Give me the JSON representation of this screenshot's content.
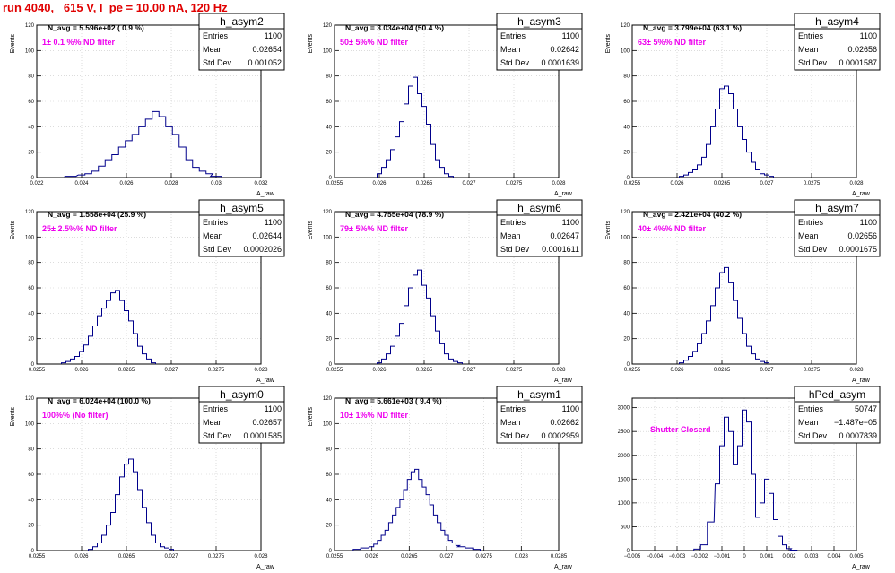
{
  "title": "run 4040,   615 V, I_pe = 10.00 nA, 120 Hz",
  "colors": {
    "title": "#e00000",
    "annotation": "#ee00ee",
    "histogram": "#00008b",
    "grid": "#c8c8c8"
  },
  "stat_labels": {
    "entries": "Entries",
    "mean": "Mean",
    "std": "Std Dev"
  },
  "chart_data": [
    {
      "type": "histogram",
      "name": "h_asym2",
      "n_avg": "N_avg = 5.596e+02 ( 0.9 %)",
      "note": "1± 0.1 %% ND filter",
      "stats": {
        "entries": "1100",
        "mean": "0.02654",
        "std": "0.001052"
      },
      "xlabel": "A_raw",
      "ylabel": "Events",
      "xlim": [
        0.022,
        0.032
      ],
      "ylim": [
        0,
        120
      ],
      "xticks": [
        "0.022",
        "0.024",
        "0.026",
        "0.028",
        "0.03",
        "0.032"
      ],
      "yticks": [
        "0",
        "20",
        "40",
        "60",
        "80",
        "100",
        "120"
      ],
      "x": [
        0.0235,
        0.024,
        0.0243,
        0.0246,
        0.0249,
        0.0252,
        0.0255,
        0.0258,
        0.0261,
        0.0264,
        0.0267,
        0.027,
        0.0273,
        0.0276,
        0.0279,
        0.0282,
        0.0285,
        0.0288,
        0.0291,
        0.0294,
        0.0297,
        0.03
      ],
      "values": [
        1,
        2,
        3,
        5,
        9,
        14,
        18,
        24,
        29,
        34,
        40,
        46,
        52,
        48,
        40,
        34,
        24,
        14,
        8,
        5,
        3,
        1
      ]
    },
    {
      "type": "histogram",
      "name": "h_asym3",
      "n_avg": "N_avg = 3.034e+04 (50.4 %)",
      "note": "50± 5%% ND filter",
      "stats": {
        "entries": "1100",
        "mean": "0.02642",
        "std": "0.0001639"
      },
      "xlabel": "A_raw",
      "ylabel": "Events",
      "xlim": [
        0.0255,
        0.028
      ],
      "ylim": [
        0,
        120
      ],
      "xticks": [
        "0.0255",
        "0.026",
        "0.0265",
        "0.027",
        "0.0275",
        "0.028"
      ],
      "yticks": [
        "0",
        "20",
        "40",
        "60",
        "80",
        "100",
        "120"
      ],
      "x": [
        0.026,
        0.02605,
        0.0261,
        0.02615,
        0.0262,
        0.02625,
        0.0263,
        0.02635,
        0.0264,
        0.02645,
        0.0265,
        0.02655,
        0.0266,
        0.02665,
        0.0267,
        0.02675,
        0.0268
      ],
      "values": [
        3,
        8,
        14,
        22,
        32,
        44,
        58,
        72,
        79,
        66,
        56,
        42,
        26,
        14,
        8,
        3,
        1
      ]
    },
    {
      "type": "histogram",
      "name": "h_asym4",
      "n_avg": "N_avg = 3.799e+04 (63.1 %)",
      "note": "63± 5%% ND filter",
      "stats": {
        "entries": "1100",
        "mean": "0.02656",
        "std": "0.0001587"
      },
      "xlabel": "A_raw",
      "ylabel": "Events",
      "xlim": [
        0.0255,
        0.028
      ],
      "ylim": [
        0,
        120
      ],
      "xticks": [
        "0.0255",
        "0.026",
        "0.0265",
        "0.027",
        "0.0275",
        "0.028"
      ],
      "yticks": [
        "0",
        "20",
        "40",
        "60",
        "80",
        "100",
        "120"
      ],
      "x": [
        0.02605,
        0.0261,
        0.02615,
        0.0262,
        0.02625,
        0.0263,
        0.02635,
        0.0264,
        0.02645,
        0.0265,
        0.02655,
        0.0266,
        0.02665,
        0.0267,
        0.02675,
        0.0268,
        0.02685,
        0.0269,
        0.02695,
        0.027,
        0.02705
      ],
      "values": [
        1,
        2,
        4,
        6,
        10,
        16,
        26,
        40,
        54,
        70,
        72,
        66,
        54,
        40,
        30,
        20,
        12,
        6,
        3,
        2,
        1
      ]
    },
    {
      "type": "histogram",
      "name": "h_asym5",
      "n_avg": "N_avg = 1.558e+04 (25.9 %)",
      "note": "25± 2.5%% ND filter",
      "stats": {
        "entries": "1100",
        "mean": "0.02644",
        "std": "0.0002026"
      },
      "xlabel": "A_raw",
      "ylabel": "Events",
      "xlim": [
        0.0255,
        0.028
      ],
      "ylim": [
        0,
        120
      ],
      "xticks": [
        "0.0255",
        "0.026",
        "0.0265",
        "0.027",
        "0.0275",
        "0.028"
      ],
      "yticks": [
        "0",
        "20",
        "40",
        "60",
        "80",
        "100",
        "120"
      ],
      "x": [
        0.0258,
        0.02585,
        0.0259,
        0.02595,
        0.026,
        0.02605,
        0.0261,
        0.02615,
        0.0262,
        0.02625,
        0.0263,
        0.02635,
        0.0264,
        0.02645,
        0.0265,
        0.02655,
        0.0266,
        0.02665,
        0.0267,
        0.02675,
        0.0268
      ],
      "values": [
        1,
        2,
        4,
        6,
        10,
        15,
        22,
        30,
        38,
        44,
        50,
        56,
        58,
        50,
        42,
        34,
        24,
        14,
        8,
        4,
        1
      ]
    },
    {
      "type": "histogram",
      "name": "h_asym6",
      "n_avg": "N_avg = 4.755e+04 (78.9 %)",
      "note": "79± 5%% ND filter",
      "stats": {
        "entries": "1100",
        "mean": "0.02647",
        "std": "0.0001611"
      },
      "xlabel": "A_raw",
      "ylabel": "Events",
      "xlim": [
        0.0255,
        0.028
      ],
      "ylim": [
        0,
        120
      ],
      "xticks": [
        "0.0255",
        "0.026",
        "0.0265",
        "0.027",
        "0.0275",
        "0.028"
      ],
      "yticks": [
        "0",
        "20",
        "40",
        "60",
        "80",
        "100",
        "120"
      ],
      "x": [
        0.026,
        0.02605,
        0.0261,
        0.02615,
        0.0262,
        0.02625,
        0.0263,
        0.02635,
        0.0264,
        0.02645,
        0.0265,
        0.02655,
        0.0266,
        0.02665,
        0.0267,
        0.02675,
        0.0268,
        0.02685,
        0.0269
      ],
      "values": [
        1,
        4,
        8,
        14,
        22,
        32,
        46,
        60,
        70,
        74,
        62,
        52,
        38,
        26,
        16,
        8,
        4,
        2,
        1
      ]
    },
    {
      "type": "histogram",
      "name": "h_asym7",
      "n_avg": "N_avg = 2.421e+04 (40.2 %)",
      "note": "40± 4%% ND filter",
      "stats": {
        "entries": "1100",
        "mean": "0.02656",
        "std": "0.0001675"
      },
      "xlabel": "A_raw",
      "ylabel": "Events",
      "xlim": [
        0.0255,
        0.028
      ],
      "ylim": [
        0,
        120
      ],
      "xticks": [
        "0.0255",
        "0.026",
        "0.0265",
        "0.027",
        "0.0275",
        "0.028"
      ],
      "yticks": [
        "0",
        "20",
        "40",
        "60",
        "80",
        "100",
        "120"
      ],
      "x": [
        0.02605,
        0.0261,
        0.02615,
        0.0262,
        0.02625,
        0.0263,
        0.02635,
        0.0264,
        0.02645,
        0.0265,
        0.02655,
        0.0266,
        0.02665,
        0.0267,
        0.02675,
        0.0268,
        0.02685,
        0.0269,
        0.02695,
        0.027
      ],
      "values": [
        1,
        3,
        6,
        10,
        16,
        24,
        34,
        46,
        60,
        72,
        76,
        64,
        50,
        36,
        24,
        14,
        8,
        4,
        2,
        1
      ]
    },
    {
      "type": "histogram",
      "name": "h_asym0",
      "n_avg": "N_avg = 6.024e+04 (100.0 %)",
      "note": "100%% (No filter)",
      "stats": {
        "entries": "1100",
        "mean": "0.02657",
        "std": "0.0001585"
      },
      "xlabel": "A_raw",
      "ylabel": "Events",
      "xlim": [
        0.0255,
        0.028
      ],
      "ylim": [
        0,
        120
      ],
      "xticks": [
        "0.0255",
        "0.026",
        "0.0265",
        "0.027",
        "0.0275",
        "0.028"
      ],
      "yticks": [
        "0",
        "20",
        "40",
        "60",
        "80",
        "100",
        "120"
      ],
      "x": [
        0.0261,
        0.02615,
        0.0262,
        0.02625,
        0.0263,
        0.02635,
        0.0264,
        0.02645,
        0.0265,
        0.02655,
        0.0266,
        0.02665,
        0.0267,
        0.02675,
        0.0268,
        0.02685,
        0.0269,
        0.02695,
        0.027
      ],
      "values": [
        1,
        3,
        6,
        12,
        20,
        30,
        44,
        58,
        68,
        72,
        62,
        48,
        34,
        22,
        12,
        6,
        3,
        2,
        1
      ]
    },
    {
      "type": "histogram",
      "name": "h_asym1",
      "n_avg": "N_avg = 5.661e+03 ( 9.4 %)",
      "note": "10± 1%% ND filter",
      "stats": {
        "entries": "1100",
        "mean": "0.02662",
        "std": "0.0002959"
      },
      "xlabel": "A_raw",
      "ylabel": "Events",
      "xlim": [
        0.0255,
        0.0285
      ],
      "ylim": [
        0,
        120
      ],
      "xticks": [
        "0.0255",
        "0.026",
        "0.0265",
        "0.027",
        "0.0275",
        "0.028",
        "0.0285"
      ],
      "yticks": [
        "0",
        "20",
        "40",
        "60",
        "80",
        "100",
        "120"
      ],
      "x": [
        0.0258,
        0.0259,
        0.026,
        0.02605,
        0.0261,
        0.02615,
        0.0262,
        0.02625,
        0.0263,
        0.02635,
        0.0264,
        0.02645,
        0.0265,
        0.02655,
        0.0266,
        0.02665,
        0.0267,
        0.02675,
        0.0268,
        0.02685,
        0.0269,
        0.02695,
        0.027,
        0.02705,
        0.0271,
        0.02715,
        0.0272,
        0.0273,
        0.0274
      ],
      "values": [
        1,
        2,
        3,
        5,
        8,
        12,
        16,
        22,
        28,
        34,
        40,
        48,
        56,
        62,
        64,
        56,
        50,
        44,
        36,
        28,
        22,
        16,
        12,
        8,
        6,
        4,
        3,
        2,
        1
      ]
    },
    {
      "type": "histogram",
      "name": "hPed_asym",
      "n_avg": "",
      "note": "Shutter Closerd",
      "stats": {
        "entries": "50747",
        "mean": "−1.487e−05",
        "std": "0.0007839"
      },
      "xlabel": "A_raw",
      "ylabel": "",
      "xlim": [
        -0.005,
        0.005
      ],
      "ylim": [
        0,
        3200
      ],
      "xticks": [
        "−0.005",
        "−0.004",
        "−0.003",
        "−0.002",
        "−0.001",
        "0",
        "0.001",
        "0.002",
        "0.003",
        "0.004",
        "0.005"
      ],
      "yticks": [
        "0",
        "500",
        "1000",
        "1500",
        "2000",
        "2500",
        "3000"
      ],
      "x": [
        -0.0021,
        -0.0018,
        -0.0015,
        -0.0012,
        -0.001,
        -0.0008,
        -0.0006,
        -0.0004,
        -0.0002,
        0.0,
        0.0002,
        0.0004,
        0.0006,
        0.0008,
        0.001,
        0.0012,
        0.0014,
        0.0016,
        0.0018,
        0.002,
        0.0022
      ],
      "values": [
        30,
        120,
        600,
        1400,
        2200,
        2800,
        2500,
        1800,
        2200,
        2950,
        2700,
        1600,
        700,
        1000,
        1500,
        1200,
        650,
        300,
        120,
        40,
        10
      ]
    }
  ]
}
